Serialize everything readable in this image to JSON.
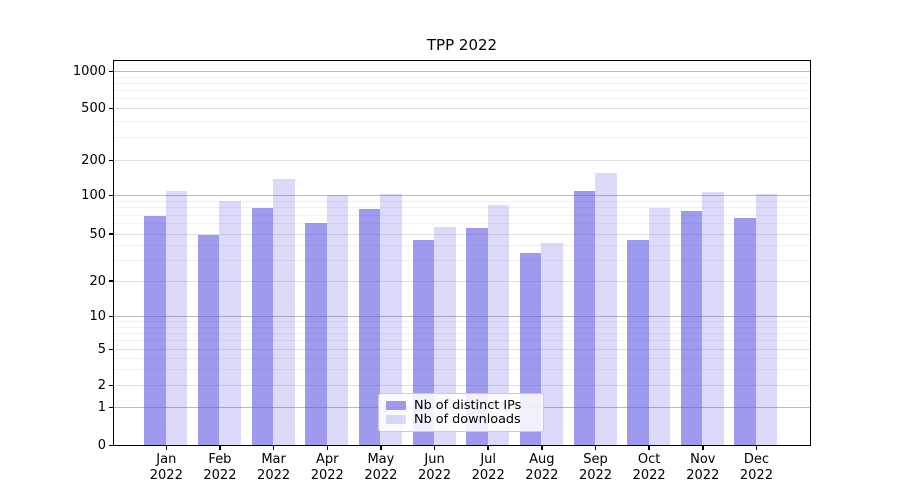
{
  "title": "TPP 2022",
  "legend": {
    "items": [
      {
        "label": "Nb of distinct IPs",
        "series": "ips"
      },
      {
        "label": "Nb of downloads",
        "series": "downloads"
      }
    ]
  },
  "colors": {
    "ips": "rgba(93,89,229,0.60)",
    "downloads": "rgba(93,89,229,0.22)",
    "grid_major": "#b9b9b9",
    "grid_mid": "#e0e0e0",
    "grid_minor": "#f1f1f1",
    "axis": "#000000",
    "legend_border": "#cccccc"
  },
  "y_axis": {
    "tick_values": [
      1000,
      500,
      200,
      100,
      50,
      20,
      10,
      5,
      2,
      1,
      0
    ],
    "tick_labels": [
      "1000",
      "500",
      "200",
      "100",
      "50",
      "20",
      "10",
      "5",
      "2",
      "1",
      "0"
    ]
  },
  "x_axis": {
    "months": [
      "Jan",
      "Feb",
      "Mar",
      "Apr",
      "May",
      "Jun",
      "Jul",
      "Aug",
      "Sep",
      "Oct",
      "Nov",
      "Dec"
    ],
    "year": "2022"
  },
  "chart_data": {
    "type": "bar",
    "title": "TPP 2022",
    "categories": [
      "Jan 2022",
      "Feb 2022",
      "Mar 2022",
      "Apr 2022",
      "May 2022",
      "Jun 2022",
      "Jul 2022",
      "Aug 2022",
      "Sep 2022",
      "Oct 2022",
      "Nov 2022",
      "Dec 2022"
    ],
    "series": [
      {
        "name": "Nb of distinct IPs",
        "values": [
          70,
          50,
          81,
          62,
          79,
          45,
          56,
          35,
          111,
          45,
          76,
          67
        ]
      },
      {
        "name": "Nb of downloads",
        "values": [
          111,
          92,
          141,
          102,
          104,
          57,
          85,
          42,
          159,
          80,
          108,
          104
        ]
      }
    ],
    "yscale": "log-like with 0 baseline (ticks 0,1,2,5,10,20,50,100,200,500,1000)",
    "ylim": [
      0,
      1230
    ],
    "xlabel": "",
    "ylabel": "",
    "grid": "major and minor horizontal gridlines",
    "legend_position": "lower center"
  }
}
